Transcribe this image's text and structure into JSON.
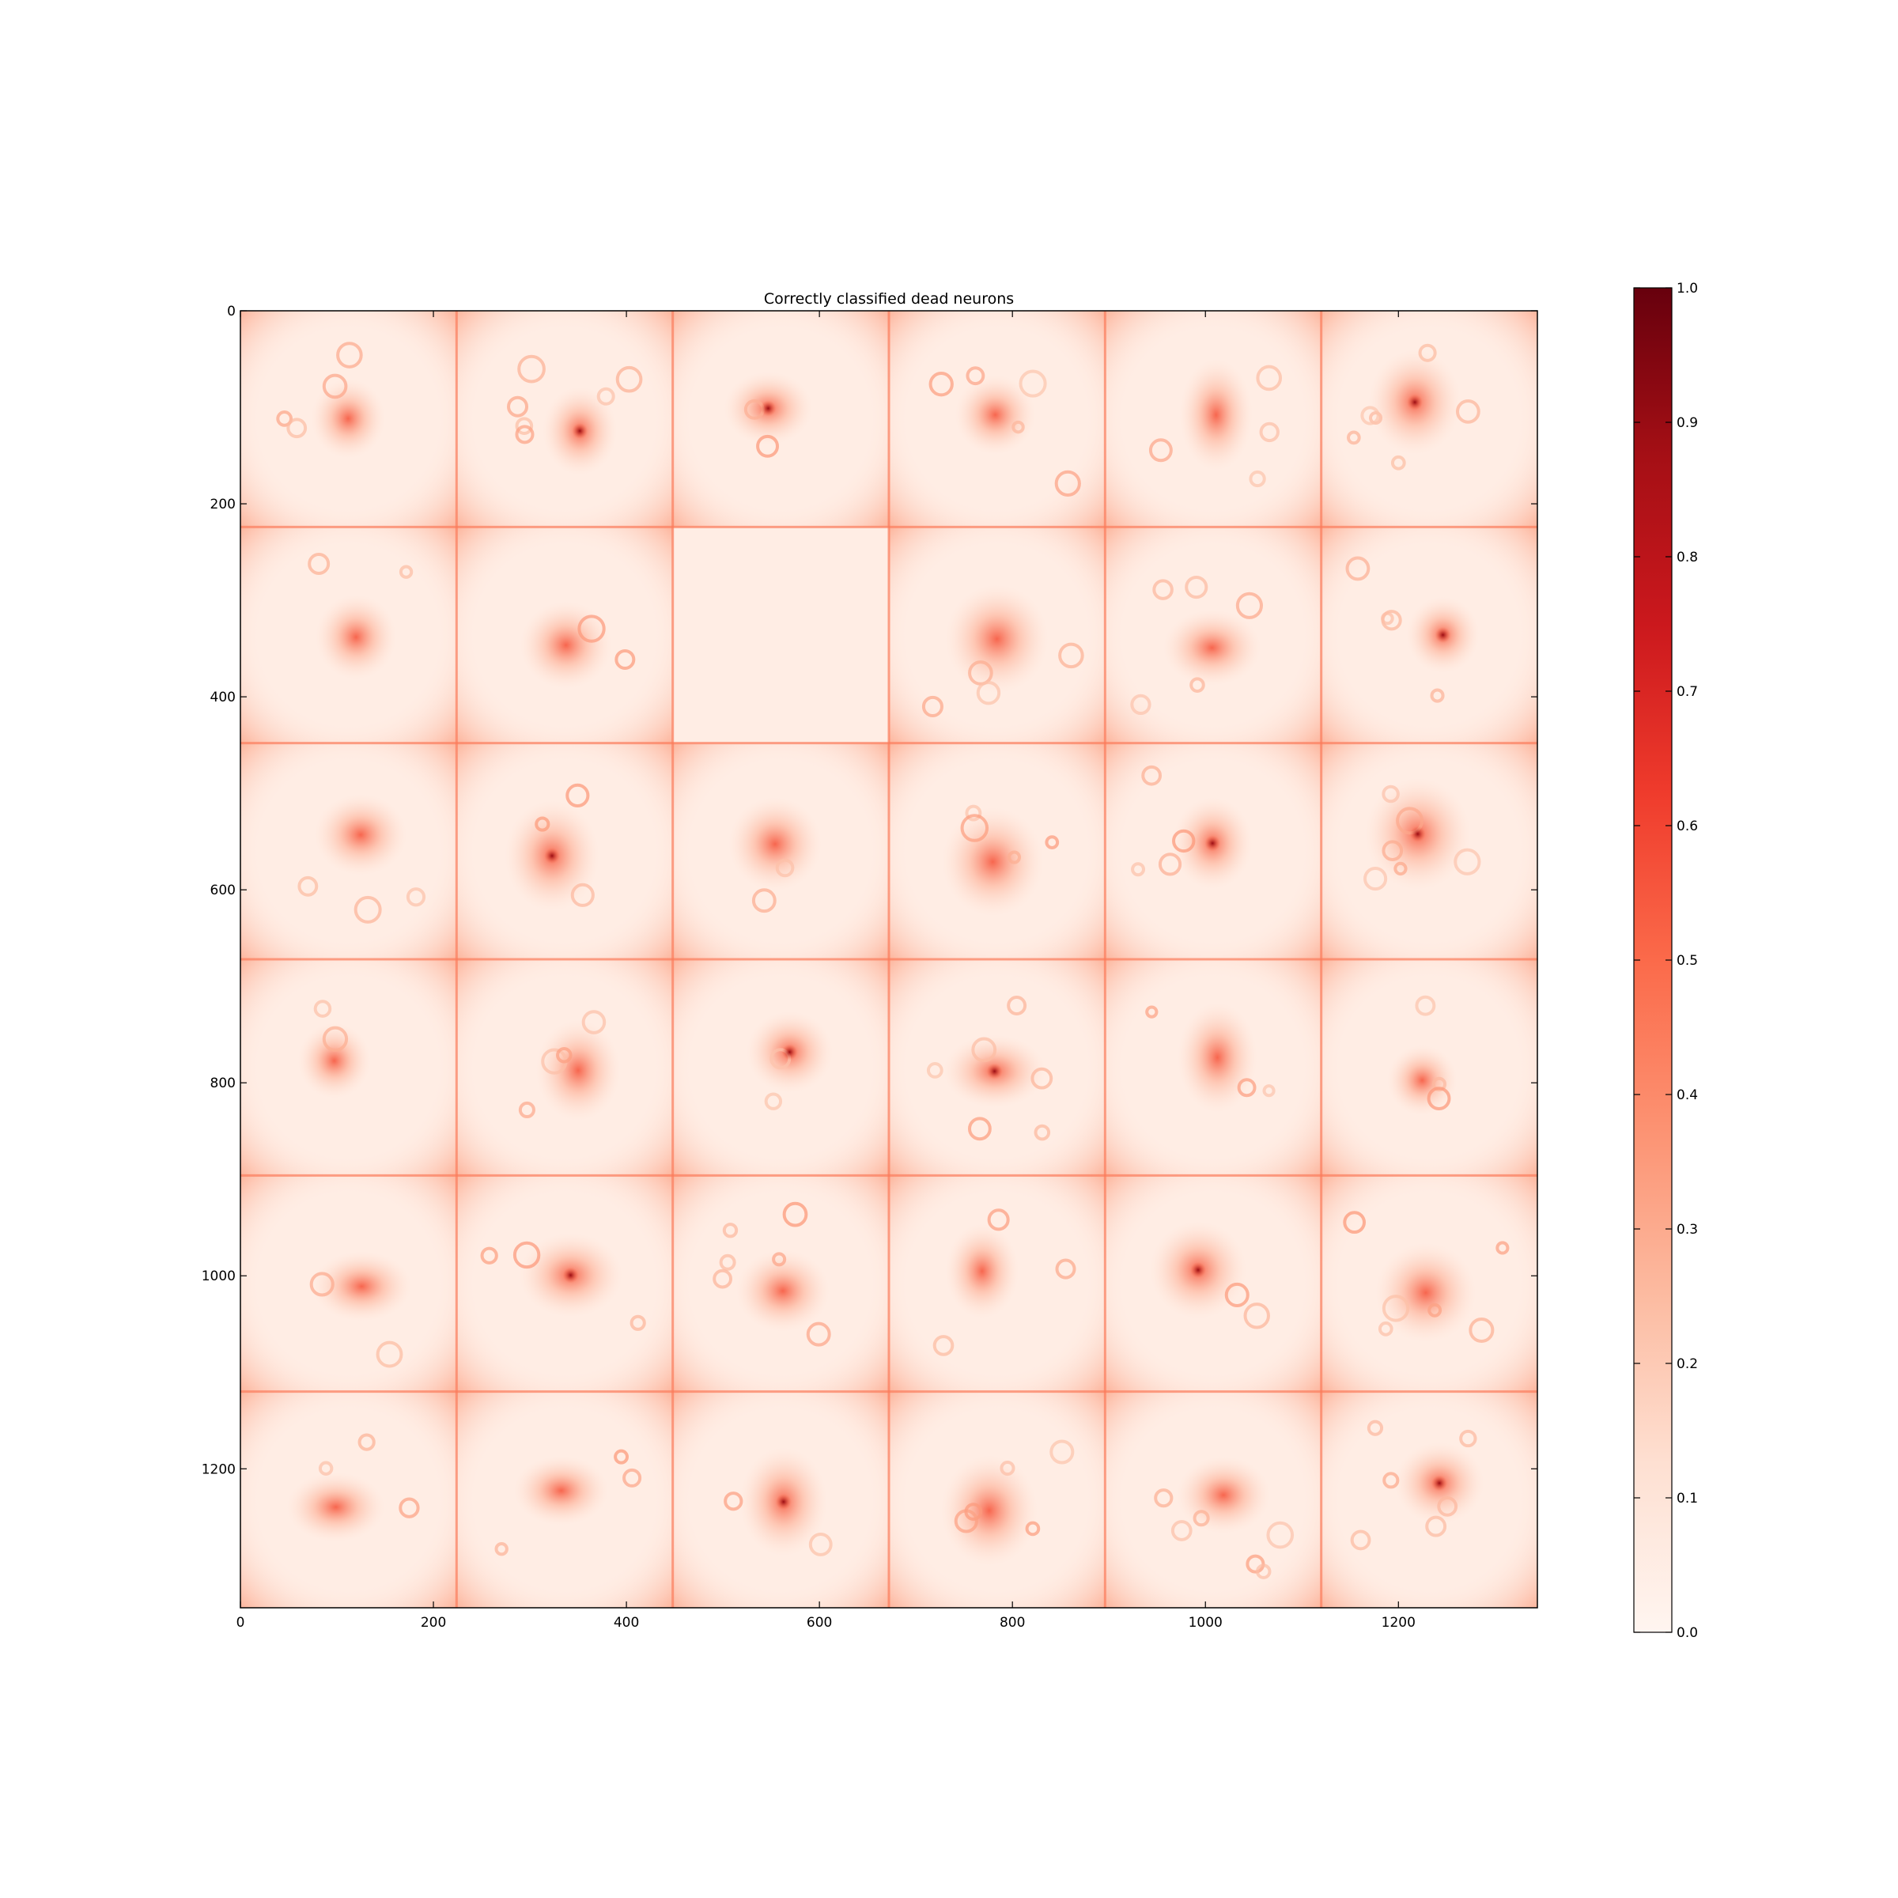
{
  "chart_data": {
    "type": "heatmap",
    "title": "Correctly classified dead neurons",
    "xlabel": "",
    "ylabel": "",
    "colormap": "Reds",
    "xlim": [
      0,
      1344
    ],
    "ylim": [
      1344,
      0
    ],
    "x_ticks": [
      0,
      200,
      400,
      600,
      800,
      1000,
      1200
    ],
    "y_ticks": [
      0,
      200,
      400,
      600,
      800,
      1000,
      1200
    ],
    "x_tick_labels": [
      "0",
      "200",
      "400",
      "600",
      "800",
      "1000",
      "1200"
    ],
    "y_tick_labels": [
      "0",
      "200",
      "400",
      "600",
      "800",
      "1000",
      "1200"
    ],
    "grid": false,
    "tiles": {
      "rows": 6,
      "cols": 6,
      "tile_size": 224,
      "blank_tiles": [
        [
          1,
          2
        ]
      ],
      "description_values": "per-tile saliency maps, values in [0,1]"
    },
    "colorbar": {
      "range": [
        0.0,
        1.0
      ],
      "ticks": [
        0.0,
        0.1,
        0.2,
        0.3,
        0.4,
        0.5,
        0.6,
        0.7,
        0.8,
        0.9,
        1.0
      ],
      "tick_labels": [
        "0.0",
        "0.1",
        "0.2",
        "0.3",
        "0.4",
        "0.5",
        "0.6",
        "0.7",
        "0.8",
        "0.9",
        "1.0"
      ],
      "colors": [
        "#fff5f0",
        "#fee0d2",
        "#fcbba1",
        "#fc9272",
        "#fb6a4a",
        "#ef3b2c",
        "#cb181d",
        "#a50f15",
        "#67000d"
      ]
    }
  }
}
